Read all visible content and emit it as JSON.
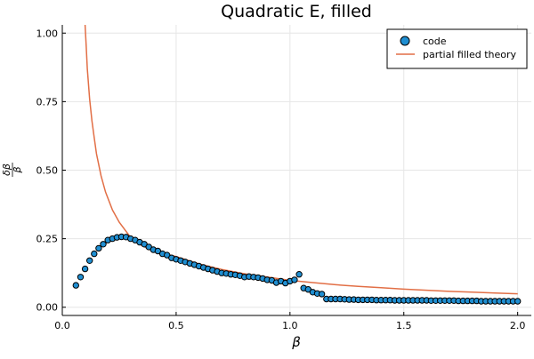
{
  "chart_data": {
    "type": "scatter",
    "title": "Quadratic E, filled",
    "xlabel": "β",
    "ylabel": "δβ / β",
    "xlim": [
      0.0,
      2.06
    ],
    "ylim": [
      -0.03,
      1.03
    ],
    "xticks": [
      0.0,
      0.5,
      1.0,
      1.5,
      2.0
    ],
    "xtick_labels": [
      "0.0",
      "0.5",
      "1.0",
      "1.5",
      "2.0"
    ],
    "yticks": [
      0.0,
      0.25,
      0.5,
      0.75,
      1.0
    ],
    "ytick_labels": [
      "0.00",
      "0.25",
      "0.50",
      "0.75",
      "1.00"
    ],
    "grid": true,
    "legend_position": "top-right",
    "series": [
      {
        "name": "code",
        "kind": "scatter",
        "color": "#1f8ed1",
        "x": [
          0.06,
          0.08,
          0.1,
          0.12,
          0.14,
          0.16,
          0.18,
          0.2,
          0.22,
          0.24,
          0.26,
          0.28,
          0.3,
          0.32,
          0.34,
          0.36,
          0.38,
          0.4,
          0.42,
          0.44,
          0.46,
          0.48,
          0.5,
          0.52,
          0.54,
          0.56,
          0.58,
          0.6,
          0.62,
          0.64,
          0.66,
          0.68,
          0.7,
          0.72,
          0.74,
          0.76,
          0.78,
          0.8,
          0.82,
          0.84,
          0.86,
          0.88,
          0.9,
          0.92,
          0.94,
          0.96,
          0.98,
          1.0,
          1.02,
          1.04,
          1.06,
          1.08,
          1.1,
          1.12,
          1.14,
          1.16,
          1.18,
          1.2,
          1.22,
          1.24,
          1.26,
          1.28,
          1.3,
          1.32,
          1.34,
          1.36,
          1.38,
          1.4,
          1.42,
          1.44,
          1.46,
          1.48,
          1.5,
          1.52,
          1.54,
          1.56,
          1.58,
          1.6,
          1.62,
          1.64,
          1.66,
          1.68,
          1.7,
          1.72,
          1.74,
          1.76,
          1.78,
          1.8,
          1.82,
          1.84,
          1.86,
          1.88,
          1.9,
          1.92,
          1.94,
          1.96,
          1.98,
          2.0
        ],
        "y": [
          0.08,
          0.11,
          0.14,
          0.17,
          0.195,
          0.215,
          0.23,
          0.245,
          0.25,
          0.255,
          0.257,
          0.256,
          0.25,
          0.245,
          0.237,
          0.23,
          0.22,
          0.21,
          0.205,
          0.195,
          0.19,
          0.18,
          0.175,
          0.17,
          0.165,
          0.16,
          0.155,
          0.15,
          0.145,
          0.14,
          0.135,
          0.13,
          0.125,
          0.123,
          0.12,
          0.118,
          0.115,
          0.11,
          0.112,
          0.11,
          0.108,
          0.105,
          0.1,
          0.098,
          0.09,
          0.095,
          0.088,
          0.095,
          0.1,
          0.12,
          0.07,
          0.065,
          0.055,
          0.05,
          0.048,
          0.03,
          0.03,
          0.03,
          0.03,
          0.029,
          0.028,
          0.028,
          0.027,
          0.027,
          0.027,
          0.027,
          0.026,
          0.026,
          0.026,
          0.026,
          0.025,
          0.025,
          0.025,
          0.025,
          0.025,
          0.025,
          0.025,
          0.025,
          0.024,
          0.024,
          0.024,
          0.024,
          0.024,
          0.024,
          0.023,
          0.023,
          0.023,
          0.023,
          0.023,
          0.022,
          0.022,
          0.022,
          0.022,
          0.022,
          0.022,
          0.022,
          0.022,
          0.022
        ]
      },
      {
        "name": "partial filled theory",
        "kind": "line",
        "color": "#e26f46",
        "x": [
          0.1,
          0.105,
          0.11,
          0.12,
          0.13,
          0.14,
          0.15,
          0.17,
          0.19,
          0.22,
          0.25,
          0.3,
          0.35,
          0.4,
          0.5,
          0.6,
          0.7,
          0.8,
          0.9,
          1.0,
          1.1,
          1.2,
          1.3,
          1.4,
          1.5,
          1.6,
          1.7,
          1.8,
          1.9,
          2.0
        ],
        "y": [
          1.03,
          0.95,
          0.87,
          0.76,
          0.68,
          0.62,
          0.56,
          0.48,
          0.42,
          0.355,
          0.31,
          0.255,
          0.225,
          0.205,
          0.185,
          0.158,
          0.138,
          0.122,
          0.11,
          0.098,
          0.09,
          0.082,
          0.076,
          0.071,
          0.066,
          0.062,
          0.058,
          0.055,
          0.052,
          0.049
        ]
      }
    ]
  }
}
